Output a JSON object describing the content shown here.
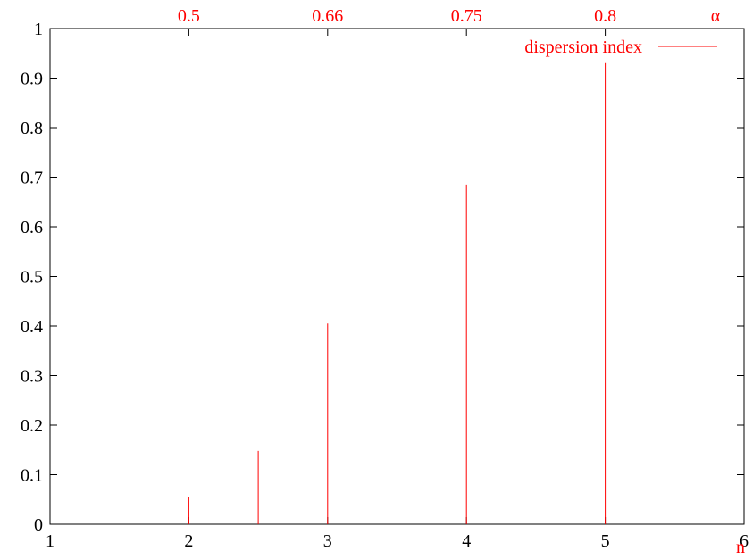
{
  "chart_data": {
    "type": "bar",
    "style": "impulses",
    "x": [
      2,
      2.5,
      3,
      4,
      5
    ],
    "series": [
      {
        "name": "dispersion index",
        "values": [
          0.055,
          0.148,
          0.405,
          0.685,
          0.932
        ]
      }
    ],
    "xlim": [
      1,
      6
    ],
    "ylim": [
      0,
      1
    ],
    "x_ticks": [
      1,
      2,
      3,
      4,
      5,
      6
    ],
    "x_tick_labels": [
      "1",
      "2",
      "3",
      "4",
      "5",
      "6"
    ],
    "y_ticks": [
      0,
      0.1,
      0.2,
      0.3,
      0.4,
      0.5,
      0.6,
      0.7,
      0.8,
      0.9,
      1
    ],
    "y_tick_labels": [
      "0",
      "0.1",
      "0.2",
      "0.3",
      "0.4",
      "0.5",
      "0.6",
      "0.7",
      "0.8",
      "0.9",
      "1"
    ],
    "x2_ticks": [
      2,
      3,
      4,
      5
    ],
    "x2_tick_labels": [
      "0.5",
      "0.66",
      "0.75",
      "0.8"
    ],
    "xlabel": "n",
    "x2label": "α",
    "ylabel": "",
    "grid": false,
    "legend_position": "top-right",
    "colors": {
      "series": "#ff0000",
      "axis": "#000000",
      "secondary_axis_text": "#ff0000"
    }
  }
}
